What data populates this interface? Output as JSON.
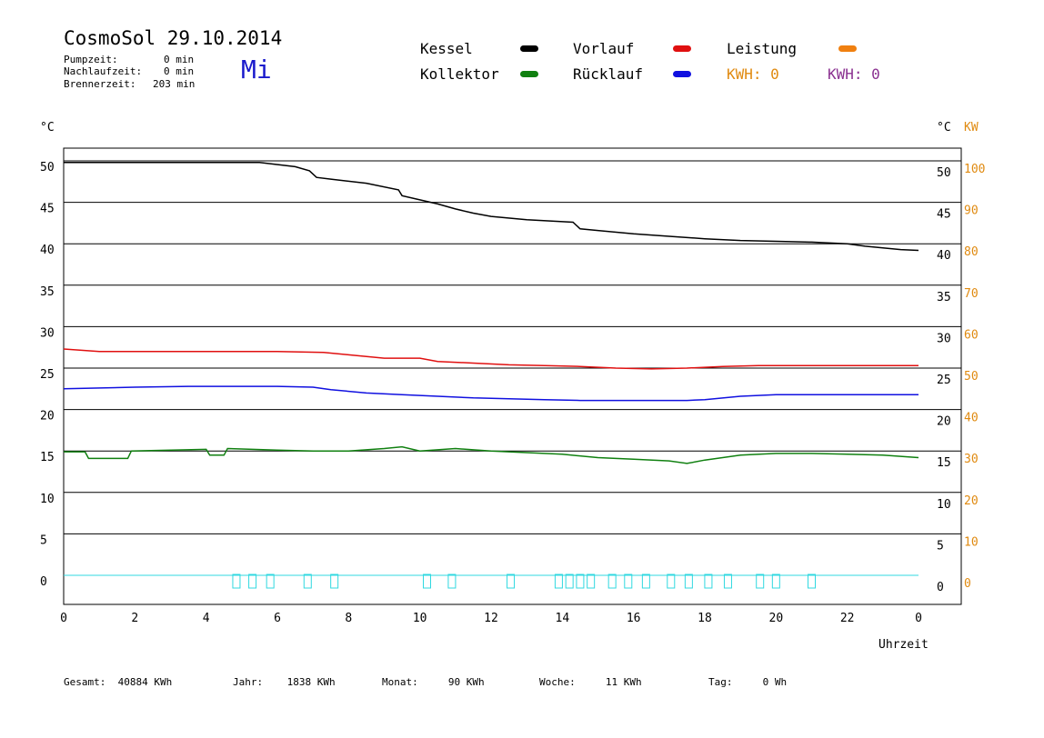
{
  "header": {
    "title": "CosmoSol 29.10.2014",
    "weekday": "Mi",
    "info": [
      {
        "label": "Pumpzeit:",
        "value": "0 min"
      },
      {
        "label": "Nachlaufzeit:",
        "value": "0 min"
      },
      {
        "label": "Brennerzeit:",
        "value": "203 min"
      }
    ]
  },
  "legend": {
    "kessel": {
      "label": "Kessel",
      "color": "#000000"
    },
    "vorlauf": {
      "label": "Vorlauf",
      "color": "#e01010"
    },
    "leistung": {
      "label": "Leistung",
      "color": "#f08010"
    },
    "kollektor": {
      "label": "Kollektor",
      "color": "#108010"
    },
    "ruecklauf": {
      "label": "Rücklauf",
      "color": "#1010e0"
    },
    "kwh1": {
      "label": "KWH:",
      "value": "0",
      "color": "#e08a10"
    },
    "kwh2": {
      "label": "KWH:",
      "value": "0",
      "color": "#8a3090"
    }
  },
  "axes": {
    "left_unit": "°C",
    "right_unit": "°C",
    "right_unit2": "KW",
    "xlabel": "Uhrzeit"
  },
  "chart_data": {
    "type": "line",
    "x_ticks": [
      "0",
      "2",
      "4",
      "6",
      "8",
      "10",
      "12",
      "14",
      "16",
      "18",
      "20",
      "22",
      "0"
    ],
    "xlim": [
      0,
      24
    ],
    "ylim": [
      0,
      50
    ],
    "y_ticks_left": [
      "50",
      "45",
      "40",
      "35",
      "30",
      "25",
      "20",
      "15",
      "10",
      "5",
      "0"
    ],
    "y_ticks_right": [
      "50",
      "45",
      "40",
      "35",
      "30",
      "25",
      "20",
      "15",
      "10",
      "5",
      "0"
    ],
    "y_ticks_kw": [
      "100",
      "90",
      "80",
      "70",
      "60",
      "50",
      "40",
      "30",
      "20",
      "10",
      "0"
    ],
    "grid": true,
    "series": [
      {
        "name": "Kessel",
        "color": "#000000",
        "x": [
          0,
          2,
          5.5,
          6.5,
          6.9,
          7.1,
          7.5,
          8.5,
          9.4,
          9.5,
          10,
          10.5,
          11,
          11.5,
          12,
          13,
          14.3,
          14.5,
          15,
          16,
          17,
          18,
          19,
          20,
          21,
          22,
          22.5,
          23,
          23.5,
          24
        ],
        "y": [
          49.8,
          49.8,
          49.8,
          49.3,
          48.8,
          48,
          47.8,
          47.3,
          46.5,
          45.8,
          45.3,
          44.8,
          44.2,
          43.7,
          43.3,
          42.9,
          42.6,
          41.8,
          41.6,
          41.2,
          40.9,
          40.6,
          40.4,
          40.3,
          40.2,
          40,
          39.7,
          39.5,
          39.3,
          39.2
        ]
      },
      {
        "name": "Vorlauf",
        "color": "#e01010",
        "x": [
          0,
          1,
          3,
          5,
          6,
          7.3,
          8,
          9,
          10,
          10.5,
          11.5,
          12.5,
          13.5,
          14.5,
          15.5,
          16.5,
          17.5,
          18.5,
          19.5,
          21,
          22,
          24
        ],
        "y": [
          27.3,
          27,
          27,
          27,
          27,
          26.9,
          26.6,
          26.2,
          26.2,
          25.8,
          25.6,
          25.4,
          25.3,
          25.2,
          25,
          24.9,
          25,
          25.2,
          25.3,
          25.3,
          25.3,
          25.3
        ]
      },
      {
        "name": "Rücklauf",
        "color": "#1010e0",
        "x": [
          0,
          2,
          3.5,
          6,
          7,
          7.5,
          8.5,
          9.5,
          10.5,
          11.5,
          12.5,
          13.5,
          14.5,
          15.5,
          16.5,
          17.5,
          18,
          19,
          20,
          21,
          22,
          24
        ],
        "y": [
          22.5,
          22.7,
          22.8,
          22.8,
          22.7,
          22.4,
          22,
          21.8,
          21.6,
          21.4,
          21.3,
          21.2,
          21.1,
          21.1,
          21.1,
          21.1,
          21.2,
          21.6,
          21.8,
          21.8,
          21.8,
          21.8
        ]
      },
      {
        "name": "Kollektor",
        "color": "#108010",
        "x": [
          0,
          0.6,
          0.7,
          1.8,
          1.9,
          4,
          4.1,
          4.5,
          4.6,
          6,
          7,
          8,
          9,
          9.5,
          10,
          11,
          12,
          13,
          14,
          15,
          16,
          17,
          17.5,
          18,
          19,
          20,
          21,
          22,
          23,
          24
        ],
        "y": [
          14.9,
          14.9,
          14.1,
          14.1,
          15,
          15.2,
          14.5,
          14.5,
          15.3,
          15.1,
          15,
          15,
          15.3,
          15.5,
          15,
          15.3,
          15,
          14.8,
          14.6,
          14.2,
          14,
          13.8,
          13.5,
          13.9,
          14.5,
          14.7,
          14.7,
          14.6,
          14.5,
          14.2
        ]
      }
    ],
    "events_hours": [
      4.85,
      5.3,
      5.8,
      6.85,
      7.6,
      10.2,
      10.9,
      12.55,
      13.9,
      14.2,
      14.5,
      14.8,
      15.4,
      15.85,
      16.35,
      17.05,
      17.55,
      18.1,
      18.65,
      19.55,
      20,
      21
    ]
  },
  "footer": [
    {
      "label": "Gesamt:",
      "value": "40884 KWh"
    },
    {
      "label": "Jahr:",
      "value": "1838 KWh"
    },
    {
      "label": "Monat:",
      "value": "90 KWh"
    },
    {
      "label": "Woche:",
      "value": "11 KWh"
    },
    {
      "label": "Tag:",
      "value": "0 Wh"
    }
  ]
}
